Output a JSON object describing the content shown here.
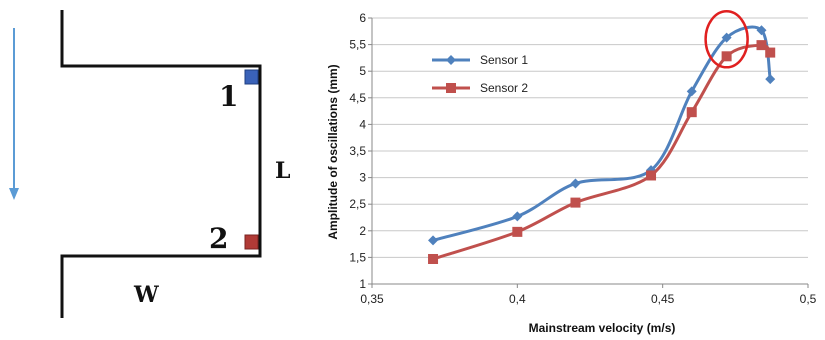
{
  "schematic": {
    "sensor_labels": [
      "1",
      "2"
    ],
    "length_label": "L",
    "width_label": "W",
    "sensor_colors": [
      "#3a62b8",
      "#b03a36"
    ],
    "flow_arrow_color": "#5b9bd5"
  },
  "chart_data": {
    "type": "line",
    "xlabel": "Mainstream velocity (m/s)",
    "ylabel": "Amplitude of oscillations (mm)",
    "xlim": [
      0.35,
      0.5
    ],
    "ylim": [
      1,
      6
    ],
    "x_ticks": [
      "0,35",
      "0,4",
      "0,45",
      "0,5"
    ],
    "x_tick_values": [
      0.35,
      0.4,
      0.45,
      0.5
    ],
    "y_ticks": [
      "1",
      "1,5",
      "2",
      "2,5",
      "3",
      "3,5",
      "4",
      "4,5",
      "5",
      "5,5",
      "6"
    ],
    "y_tick_values": [
      1,
      1.5,
      2,
      2.5,
      3,
      3.5,
      4,
      4.5,
      5,
      5.5,
      6
    ],
    "grid": "horizontal",
    "legend_position": "top-left",
    "series": [
      {
        "name": "Sensor 1",
        "color": "#4f81bd",
        "marker": "diamond",
        "x": [
          0.371,
          0.4,
          0.42,
          0.446,
          0.46,
          0.472,
          0.484,
          0.487
        ],
        "y": [
          1.82,
          2.27,
          2.89,
          3.14,
          4.62,
          5.63,
          5.77,
          4.85
        ]
      },
      {
        "name": "Sensor 2",
        "color": "#c0504d",
        "marker": "square",
        "x": [
          0.371,
          0.4,
          0.42,
          0.446,
          0.46,
          0.472,
          0.484,
          0.487
        ],
        "y": [
          1.47,
          1.98,
          2.53,
          3.04,
          4.23,
          5.28,
          5.49,
          5.35
        ]
      }
    ],
    "highlight": {
      "shape": "ellipse",
      "color": "#e02020",
      "x": 0.472,
      "y": 5.6
    }
  }
}
